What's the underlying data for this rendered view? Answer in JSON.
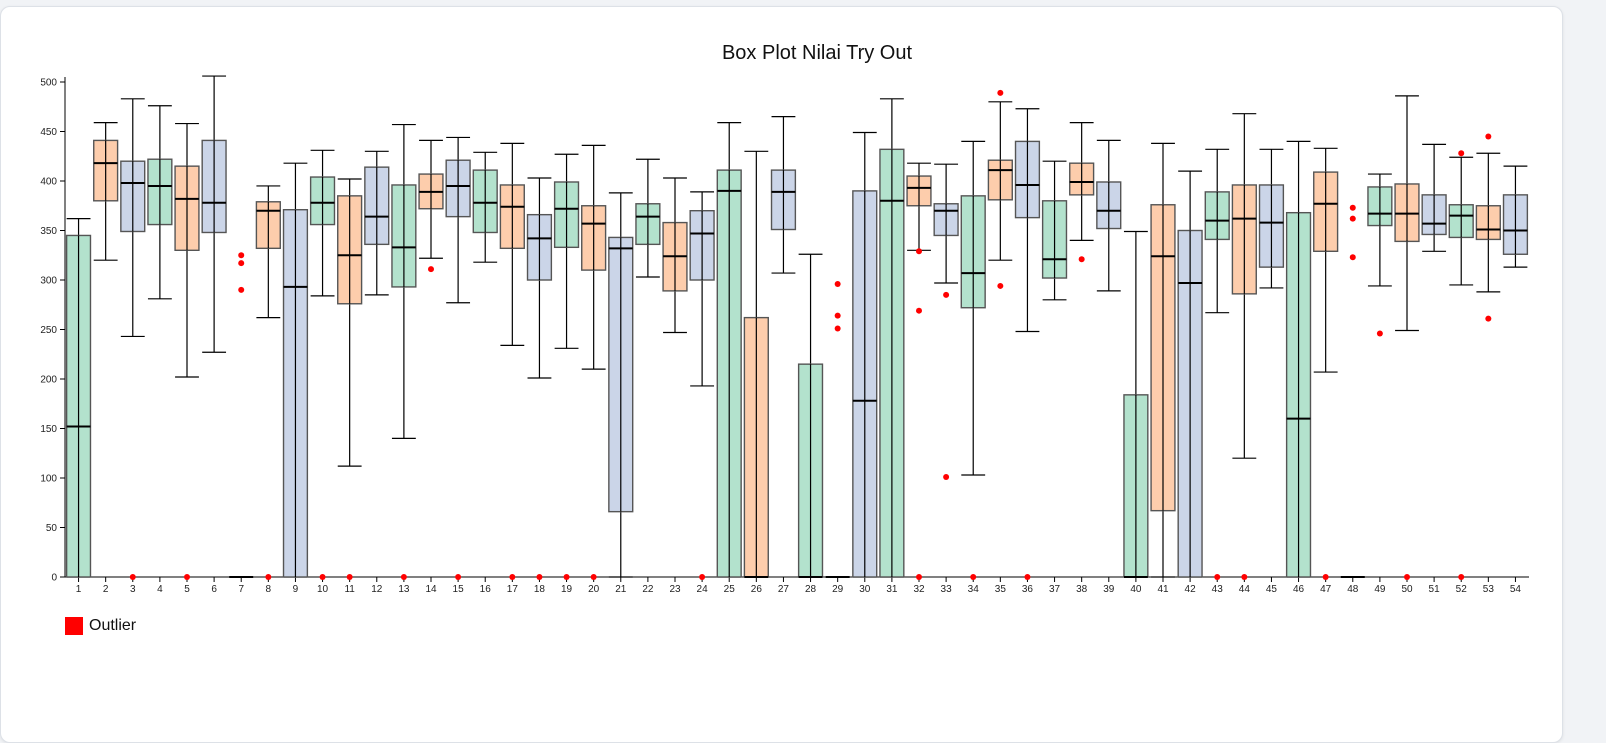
{
  "chart_data": {
    "type": "boxplot",
    "title": "Box Plot Nilai Try Out",
    "xlabel": "",
    "ylabel": "",
    "ylim": [
      0,
      500
    ],
    "yticks": [
      0,
      50,
      100,
      150,
      200,
      250,
      300,
      350,
      400,
      450,
      500
    ],
    "legend": [
      {
        "label": "Outlier",
        "color": "#ff0000"
      }
    ],
    "colors": {
      "palette": [
        "#b3e2cd",
        "#fdcdac",
        "#cbd5e8"
      ],
      "outline": "#555555",
      "outlier": "#ff0000"
    },
    "boxes": [
      {
        "label": "1",
        "min": 0,
        "q1": 0,
        "median": 152,
        "q3": 345,
        "max": 362,
        "outliers": []
      },
      {
        "label": "2",
        "min": 320,
        "q1": 380,
        "median": 418,
        "q3": 441,
        "max": 459,
        "outliers": []
      },
      {
        "label": "3",
        "min": 243,
        "q1": 349,
        "median": 398,
        "q3": 420,
        "max": 483,
        "outliers": [
          0
        ]
      },
      {
        "label": "4",
        "min": 281,
        "q1": 356,
        "median": 395,
        "q3": 422,
        "max": 476,
        "outliers": []
      },
      {
        "label": "5",
        "min": 202,
        "q1": 330,
        "median": 382,
        "q3": 415,
        "max": 458,
        "outliers": [
          0
        ]
      },
      {
        "label": "6",
        "min": 227,
        "q1": 348,
        "median": 378,
        "q3": 441,
        "max": 506,
        "outliers": []
      },
      {
        "label": "7",
        "min": 0,
        "q1": 0,
        "median": 0,
        "q3": 0,
        "max": 0,
        "outliers": [
          325,
          317,
          290
        ]
      },
      {
        "label": "8",
        "min": 262,
        "q1": 332,
        "median": 370,
        "q3": 379,
        "max": 395,
        "outliers": [
          0
        ]
      },
      {
        "label": "9",
        "min": 0,
        "q1": 0,
        "median": 293,
        "q3": 371,
        "max": 418,
        "outliers": []
      },
      {
        "label": "10",
        "min": 284,
        "q1": 356,
        "median": 378,
        "q3": 404,
        "max": 431,
        "outliers": [
          0
        ]
      },
      {
        "label": "11",
        "min": 112,
        "q1": 276,
        "median": 325,
        "q3": 385,
        "max": 402,
        "outliers": [
          0
        ]
      },
      {
        "label": "12",
        "min": 285,
        "q1": 336,
        "median": 364,
        "q3": 414,
        "max": 430,
        "outliers": []
      },
      {
        "label": "13",
        "min": 140,
        "q1": 293,
        "median": 333,
        "q3": 396,
        "max": 457,
        "outliers": [
          0
        ]
      },
      {
        "label": "14",
        "min": 322,
        "q1": 372,
        "median": 389,
        "q3": 407,
        "max": 441,
        "outliers": [
          311
        ]
      },
      {
        "label": "15",
        "min": 277,
        "q1": 364,
        "median": 395,
        "q3": 421,
        "max": 444,
        "outliers": [
          0
        ]
      },
      {
        "label": "16",
        "min": 318,
        "q1": 348,
        "median": 378,
        "q3": 411,
        "max": 429,
        "outliers": []
      },
      {
        "label": "17",
        "min": 234,
        "q1": 332,
        "median": 374,
        "q3": 396,
        "max": 438,
        "outliers": [
          0
        ]
      },
      {
        "label": "18",
        "min": 201,
        "q1": 300,
        "median": 342,
        "q3": 366,
        "max": 403,
        "outliers": [
          0
        ]
      },
      {
        "label": "19",
        "min": 231,
        "q1": 333,
        "median": 372,
        "q3": 399,
        "max": 427,
        "outliers": [
          0
        ]
      },
      {
        "label": "20",
        "min": 210,
        "q1": 310,
        "median": 357,
        "q3": 375,
        "max": 436,
        "outliers": [
          0
        ]
      },
      {
        "label": "21",
        "min": 0,
        "q1": 66,
        "median": 332,
        "q3": 343,
        "max": 388,
        "outliers": []
      },
      {
        "label": "22",
        "min": 303,
        "q1": 336,
        "median": 364,
        "q3": 377,
        "max": 422,
        "outliers": []
      },
      {
        "label": "23",
        "min": 247,
        "q1": 289,
        "median": 324,
        "q3": 358,
        "max": 403,
        "outliers": []
      },
      {
        "label": "24",
        "min": 193,
        "q1": 300,
        "median": 347,
        "q3": 370,
        "max": 389,
        "outliers": [
          0
        ]
      },
      {
        "label": "25",
        "min": 0,
        "q1": 0,
        "median": 390,
        "q3": 411,
        "max": 459,
        "outliers": []
      },
      {
        "label": "26",
        "min": 0,
        "q1": 0,
        "median": 0,
        "q3": 262,
        "max": 430,
        "outliers": []
      },
      {
        "label": "27",
        "min": 307,
        "q1": 351,
        "median": 389,
        "q3": 411,
        "max": 465,
        "outliers": []
      },
      {
        "label": "28",
        "min": 0,
        "q1": 0,
        "median": 0,
        "q3": 215,
        "max": 326,
        "outliers": []
      },
      {
        "label": "29",
        "min": 0,
        "q1": 0,
        "median": 0,
        "q3": 0,
        "max": 0,
        "outliers": [
          296,
          264,
          251
        ]
      },
      {
        "label": "30",
        "min": 0,
        "q1": 0,
        "median": 178,
        "q3": 390,
        "max": 449,
        "outliers": []
      },
      {
        "label": "31",
        "min": 0,
        "q1": 0,
        "median": 380,
        "q3": 432,
        "max": 483,
        "outliers": []
      },
      {
        "label": "32",
        "min": 330,
        "q1": 375,
        "median": 393,
        "q3": 405,
        "max": 418,
        "outliers": [
          329,
          269,
          0
        ]
      },
      {
        "label": "33",
        "min": 297,
        "q1": 345,
        "median": 370,
        "q3": 377,
        "max": 417,
        "outliers": [
          285,
          101
        ]
      },
      {
        "label": "34",
        "min": 103,
        "q1": 272,
        "median": 307,
        "q3": 385,
        "max": 440,
        "outliers": [
          0
        ]
      },
      {
        "label": "35",
        "min": 320,
        "q1": 381,
        "median": 411,
        "q3": 421,
        "max": 480,
        "outliers": [
          489,
          294
        ]
      },
      {
        "label": "36",
        "min": 248,
        "q1": 363,
        "median": 396,
        "q3": 440,
        "max": 473,
        "outliers": [
          0
        ]
      },
      {
        "label": "37",
        "min": 280,
        "q1": 302,
        "median": 321,
        "q3": 380,
        "max": 420,
        "outliers": []
      },
      {
        "label": "38",
        "min": 340,
        "q1": 386,
        "median": 399,
        "q3": 418,
        "max": 459,
        "outliers": [
          321
        ]
      },
      {
        "label": "39",
        "min": 289,
        "q1": 352,
        "median": 370,
        "q3": 399,
        "max": 441,
        "outliers": []
      },
      {
        "label": "40",
        "min": 0,
        "q1": 0,
        "median": 0,
        "q3": 184,
        "max": 349,
        "outliers": []
      },
      {
        "label": "41",
        "min": 0,
        "q1": 67,
        "median": 324,
        "q3": 376,
        "max": 438,
        "outliers": []
      },
      {
        "label": "42",
        "min": 0,
        "q1": 0,
        "median": 297,
        "q3": 350,
        "max": 410,
        "outliers": []
      },
      {
        "label": "43",
        "min": 267,
        "q1": 341,
        "median": 360,
        "q3": 389,
        "max": 432,
        "outliers": [
          0
        ]
      },
      {
        "label": "44",
        "min": 120,
        "q1": 286,
        "median": 362,
        "q3": 396,
        "max": 468,
        "outliers": [
          0
        ]
      },
      {
        "label": "45",
        "min": 292,
        "q1": 313,
        "median": 358,
        "q3": 396,
        "max": 432,
        "outliers": []
      },
      {
        "label": "46",
        "min": 0,
        "q1": 0,
        "median": 160,
        "q3": 368,
        "max": 440,
        "outliers": []
      },
      {
        "label": "47",
        "min": 207,
        "q1": 329,
        "median": 377,
        "q3": 409,
        "max": 433,
        "outliers": [
          0
        ]
      },
      {
        "label": "48",
        "min": 0,
        "q1": 0,
        "median": 0,
        "q3": 0,
        "max": 0,
        "outliers": [
          373,
          362,
          323
        ]
      },
      {
        "label": "49",
        "min": 294,
        "q1": 355,
        "median": 367,
        "q3": 394,
        "max": 407,
        "outliers": [
          246
        ]
      },
      {
        "label": "50",
        "min": 249,
        "q1": 339,
        "median": 367,
        "q3": 397,
        "max": 486,
        "outliers": [
          0
        ]
      },
      {
        "label": "51",
        "min": 329,
        "q1": 346,
        "median": 357,
        "q3": 386,
        "max": 437,
        "outliers": []
      },
      {
        "label": "52",
        "min": 295,
        "q1": 343,
        "median": 365,
        "q3": 376,
        "max": 424,
        "outliers": [
          428,
          0
        ]
      },
      {
        "label": "53",
        "min": 288,
        "q1": 341,
        "median": 351,
        "q3": 375,
        "max": 428,
        "outliers": [
          445,
          261
        ]
      },
      {
        "label": "54",
        "min": 313,
        "q1": 326,
        "median": 350,
        "q3": 386,
        "max": 415,
        "outliers": []
      }
    ]
  }
}
